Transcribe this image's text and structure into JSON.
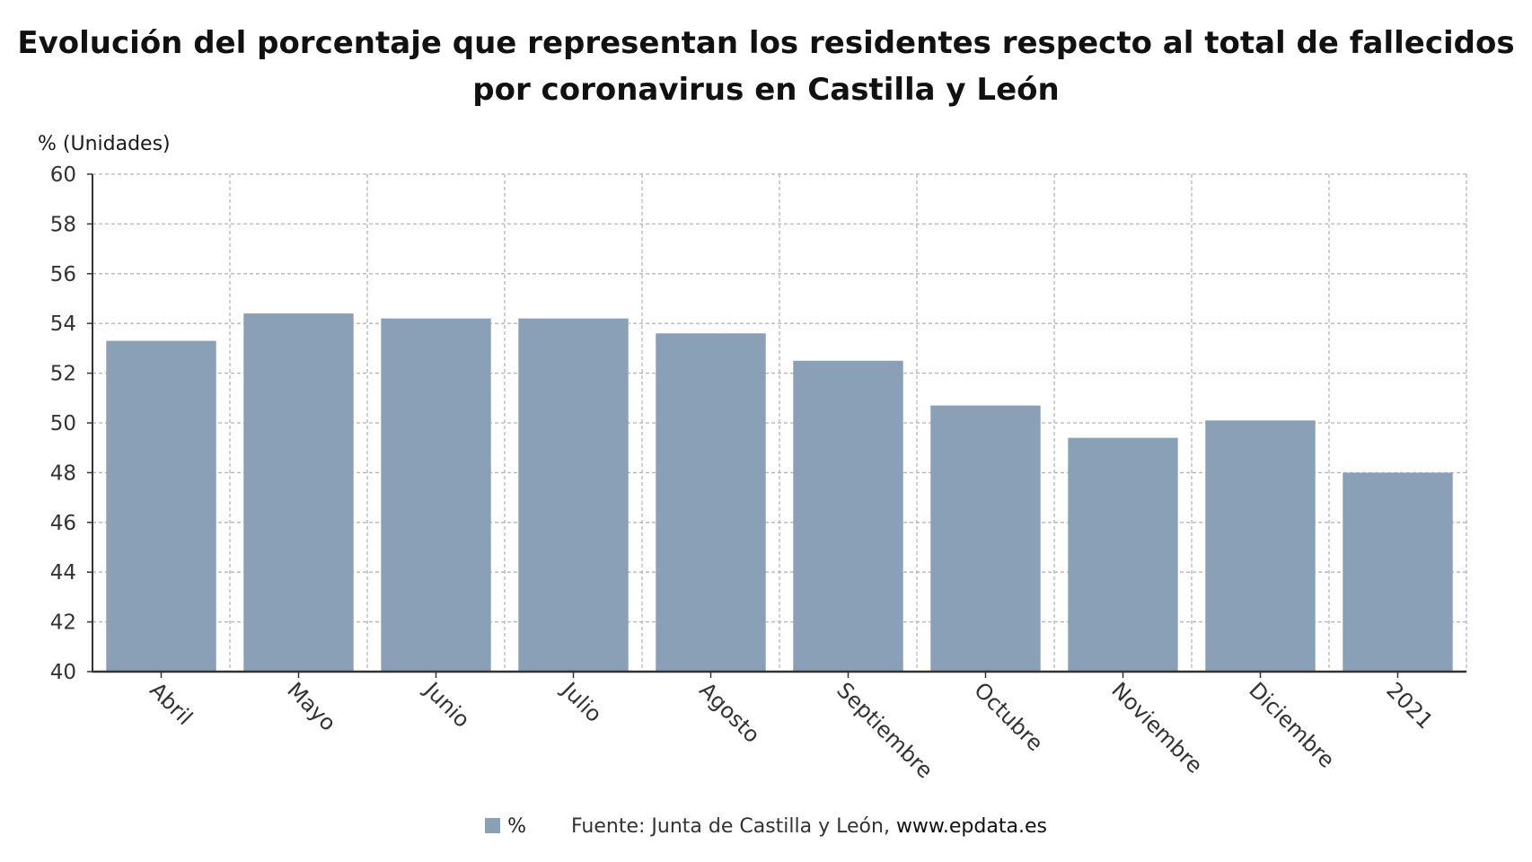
{
  "title_lines": [
    "Evolución del porcentaje que representan los residentes respecto al total de fallecidos",
    "por coronavirus en Castilla y León"
  ],
  "unit_label": "% (Unidades)",
  "colors": {
    "bar": "#8aa0b6",
    "grid": "#b5b5b5",
    "axis": "#333333",
    "text": "#333333"
  },
  "chart_data": {
    "type": "bar",
    "categories": [
      "Abril",
      "Mayo",
      "Junio",
      "Julio",
      "Agosto",
      "Septiembre",
      "Octubre",
      "Noviembre",
      "Diciembre",
      "2021"
    ],
    "series": [
      {
        "name": "%",
        "values": [
          53.3,
          54.4,
          54.2,
          54.2,
          53.6,
          52.5,
          50.7,
          49.4,
          50.1,
          48.0
        ]
      }
    ],
    "ylim": [
      40,
      60
    ],
    "yticks": [
      40,
      42,
      44,
      46,
      48,
      50,
      52,
      54,
      56,
      58,
      60
    ],
    "grid": true,
    "legend_position": "bottom"
  },
  "footer": {
    "legend_label": "%",
    "source_prefix": "Fuente: Junta de Castilla y León, ",
    "source_site": "www.epdata.es"
  }
}
